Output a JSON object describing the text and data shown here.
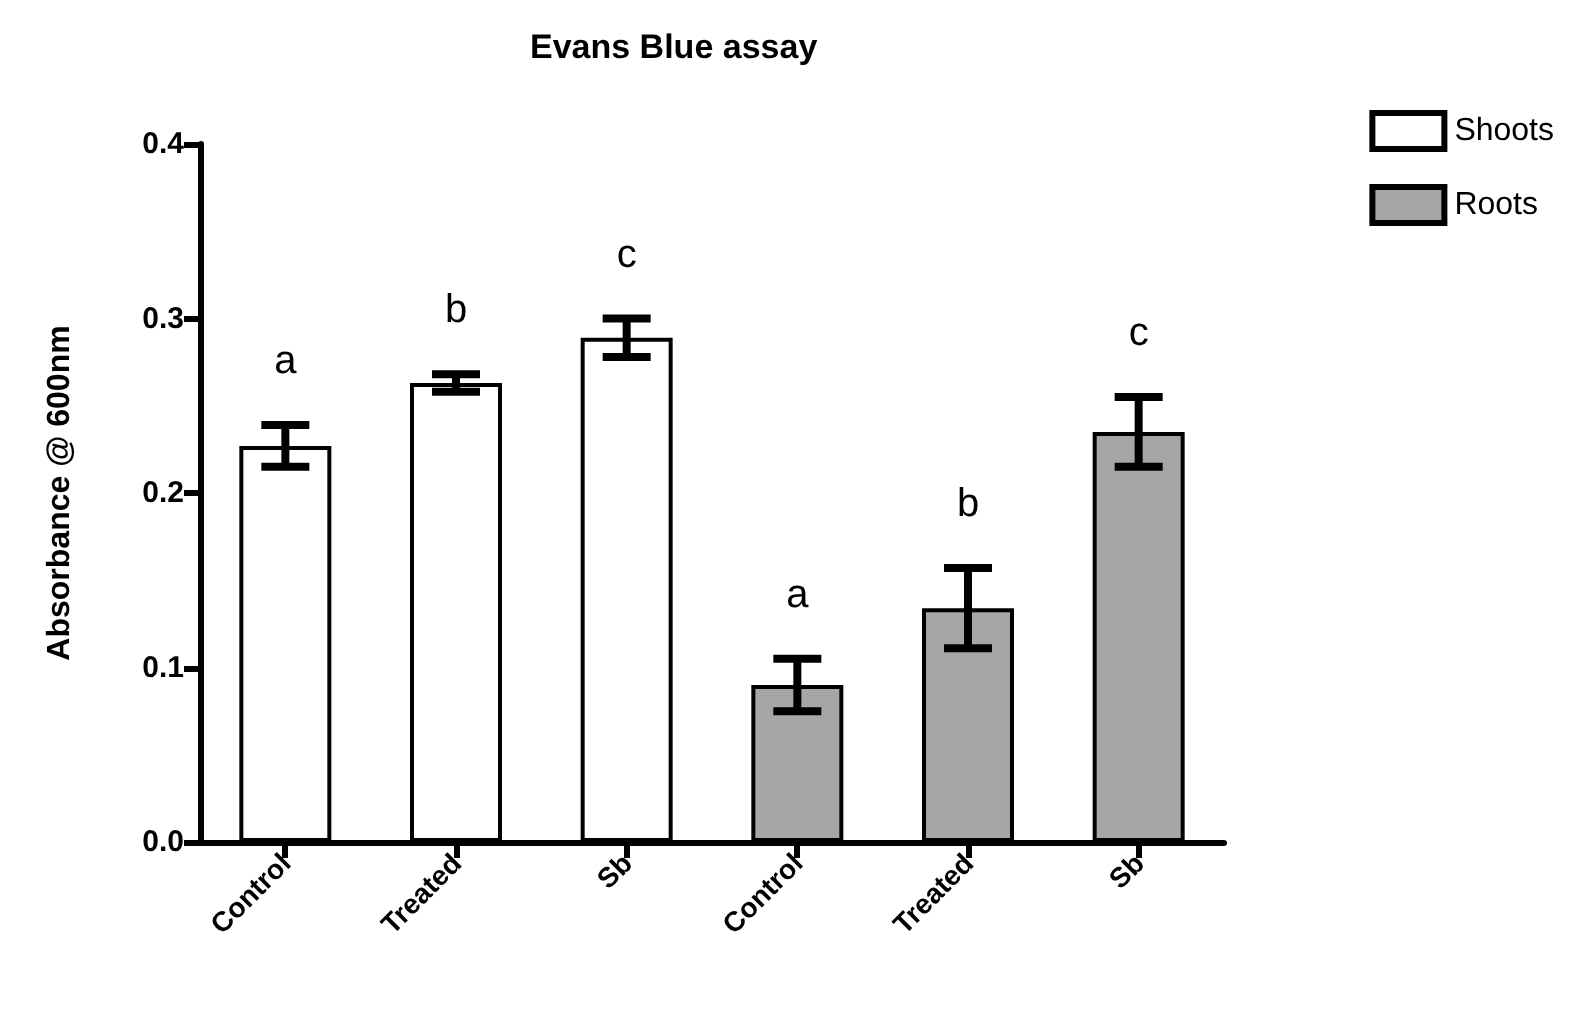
{
  "chart_data": {
    "type": "bar",
    "title": "Evans Blue assay",
    "ylabel": "Absorbance @ 600nm",
    "categories": [
      "Control",
      "Treated",
      "Sb",
      "Control",
      "Treated",
      "Sb"
    ],
    "series": [
      {
        "name": "Shoots",
        "color": "#ffffff",
        "values": [
          0.227,
          0.263,
          0.289,
          null,
          null,
          null
        ],
        "errors": [
          0.012,
          0.005,
          0.011,
          null,
          null,
          null
        ],
        "value_labels": [
          "a",
          "b",
          "c",
          null,
          null,
          null
        ]
      },
      {
        "name": "Roots",
        "color": "#a6a6a6",
        "values": [
          null,
          null,
          null,
          0.09,
          0.134,
          0.235
        ],
        "errors": [
          null,
          null,
          null,
          0.015,
          0.023,
          0.02
        ],
        "value_labels": [
          null,
          null,
          null,
          "a",
          "b",
          "c"
        ]
      }
    ],
    "ylim": [
      0,
      0.4
    ],
    "yticks": [
      {
        "value": 0,
        "label": "0.0"
      },
      {
        "value": 0.1,
        "label": "0.1"
      },
      {
        "value": 0.2,
        "label": "0.2"
      },
      {
        "value": 0.3,
        "label": "0.3"
      },
      {
        "value": 0.4,
        "label": "0.4"
      }
    ],
    "grid": false,
    "legend": "top right"
  }
}
